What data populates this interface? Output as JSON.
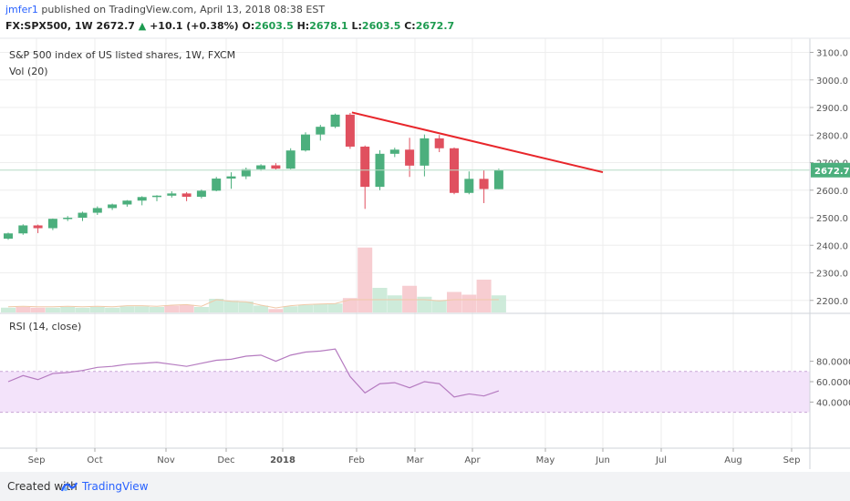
{
  "header": {
    "user": "jmfer1",
    "published": " published on TradingView.com, April 13, 2018 08:38 EST",
    "symbol": "FX:SPX500, 1W",
    "last": "2672.7",
    "change": "+10.1 (+0.38%)",
    "o_label": "O:",
    "o_value": "2603.5",
    "h_label": "H:",
    "h_value": "2678.1",
    "l_label": "L:",
    "l_value": "2603.5",
    "c_label": "C:",
    "c_value": "2672.7"
  },
  "footer": {
    "created_with": "Created with",
    "brand": "TradingView"
  },
  "colors": {
    "up": "#4caf7d",
    "down": "#e0505f",
    "trendline": "#e8262b",
    "rsi_line": "#b57bc0",
    "rsi_band": "#f3e3fa",
    "grid": "#eeeeee",
    "last_price": "#4caf7d"
  },
  "chart_data": {
    "type": "candlestick",
    "title": "S&P 500 index of US listed shares, 1W, FXCM",
    "volume_label": "Vol (20)",
    "price_axis": {
      "ticks": [
        "2200.0",
        "2300.0",
        "2400.0",
        "2500.0",
        "2600.0",
        "2700.0",
        "2800.0",
        "2900.0",
        "3000.0",
        "3100.0"
      ],
      "last_price_label": "2672.7",
      "last_price": 2672.7
    },
    "time_axis": {
      "ticks": [
        "Sep",
        "Oct",
        "Nov",
        "Dec",
        "2018",
        "Feb",
        "Mar",
        "Apr",
        "May",
        "Jun",
        "Jul",
        "Aug",
        "Sep"
      ]
    },
    "candles": [
      {
        "o": 2424,
        "h": 2446,
        "l": 2420,
        "c": 2443
      },
      {
        "o": 2443,
        "h": 2476,
        "l": 2438,
        "c": 2472
      },
      {
        "o": 2472,
        "h": 2475,
        "l": 2444,
        "c": 2462
      },
      {
        "o": 2462,
        "h": 2497,
        "l": 2455,
        "c": 2496
      },
      {
        "o": 2496,
        "h": 2506,
        "l": 2488,
        "c": 2500
      },
      {
        "o": 2500,
        "h": 2522,
        "l": 2488,
        "c": 2518
      },
      {
        "o": 2518,
        "h": 2541,
        "l": 2510,
        "c": 2535
      },
      {
        "o": 2535,
        "h": 2551,
        "l": 2528,
        "c": 2548
      },
      {
        "o": 2548,
        "h": 2564,
        "l": 2540,
        "c": 2562
      },
      {
        "o": 2562,
        "h": 2578,
        "l": 2545,
        "c": 2575
      },
      {
        "o": 2575,
        "h": 2582,
        "l": 2560,
        "c": 2580
      },
      {
        "o": 2580,
        "h": 2596,
        "l": 2573,
        "c": 2588
      },
      {
        "o": 2588,
        "h": 2593,
        "l": 2560,
        "c": 2576
      },
      {
        "o": 2576,
        "h": 2602,
        "l": 2570,
        "c": 2598
      },
      {
        "o": 2598,
        "h": 2648,
        "l": 2596,
        "c": 2642
      },
      {
        "o": 2642,
        "h": 2665,
        "l": 2605,
        "c": 2650
      },
      {
        "o": 2650,
        "h": 2682,
        "l": 2640,
        "c": 2676
      },
      {
        "o": 2676,
        "h": 2694,
        "l": 2670,
        "c": 2690
      },
      {
        "o": 2690,
        "h": 2698,
        "l": 2675,
        "c": 2678
      },
      {
        "o": 2678,
        "h": 2752,
        "l": 2676,
        "c": 2744
      },
      {
        "o": 2744,
        "h": 2810,
        "l": 2740,
        "c": 2802
      },
      {
        "o": 2802,
        "h": 2837,
        "l": 2780,
        "c": 2830
      },
      {
        "o": 2830,
        "h": 2878,
        "l": 2825,
        "c": 2874
      },
      {
        "o": 2874,
        "h": 2880,
        "l": 2750,
        "c": 2758
      },
      {
        "o": 2758,
        "h": 2762,
        "l": 2532,
        "c": 2612
      },
      {
        "o": 2612,
        "h": 2745,
        "l": 2600,
        "c": 2732
      },
      {
        "o": 2732,
        "h": 2754,
        "l": 2720,
        "c": 2747
      },
      {
        "o": 2747,
        "h": 2790,
        "l": 2648,
        "c": 2689
      },
      {
        "o": 2689,
        "h": 2802,
        "l": 2650,
        "c": 2788
      },
      {
        "o": 2788,
        "h": 2800,
        "l": 2738,
        "c": 2752
      },
      {
        "o": 2752,
        "h": 2755,
        "l": 2585,
        "c": 2590
      },
      {
        "o": 2590,
        "h": 2668,
        "l": 2585,
        "c": 2641
      },
      {
        "o": 2641,
        "h": 2672,
        "l": 2553,
        "c": 2604
      },
      {
        "o": 2603.5,
        "h": 2678.1,
        "l": 2603.5,
        "c": 2672.7
      }
    ],
    "volume": [
      {
        "v": 0.07,
        "dir": "up"
      },
      {
        "v": 0.08,
        "dir": "down"
      },
      {
        "v": 0.07,
        "dir": "down"
      },
      {
        "v": 0.07,
        "dir": "up"
      },
      {
        "v": 0.08,
        "dir": "up"
      },
      {
        "v": 0.07,
        "dir": "up"
      },
      {
        "v": 0.08,
        "dir": "up"
      },
      {
        "v": 0.07,
        "dir": "up"
      },
      {
        "v": 0.09,
        "dir": "up"
      },
      {
        "v": 0.09,
        "dir": "up"
      },
      {
        "v": 0.08,
        "dir": "up"
      },
      {
        "v": 0.1,
        "dir": "down"
      },
      {
        "v": 0.11,
        "dir": "down"
      },
      {
        "v": 0.08,
        "dir": "up"
      },
      {
        "v": 0.2,
        "dir": "up"
      },
      {
        "v": 0.17,
        "dir": "up"
      },
      {
        "v": 0.16,
        "dir": "up"
      },
      {
        "v": 0.1,
        "dir": "up"
      },
      {
        "v": 0.05,
        "dir": "down"
      },
      {
        "v": 0.09,
        "dir": "up"
      },
      {
        "v": 0.11,
        "dir": "up"
      },
      {
        "v": 0.12,
        "dir": "up"
      },
      {
        "v": 0.13,
        "dir": "up"
      },
      {
        "v": 0.21,
        "dir": "down"
      },
      {
        "v": 0.95,
        "dir": "down"
      },
      {
        "v": 0.36,
        "dir": "up"
      },
      {
        "v": 0.25,
        "dir": "up"
      },
      {
        "v": 0.39,
        "dir": "down"
      },
      {
        "v": 0.23,
        "dir": "up"
      },
      {
        "v": 0.18,
        "dir": "up"
      },
      {
        "v": 0.3,
        "dir": "down"
      },
      {
        "v": 0.26,
        "dir": "down"
      },
      {
        "v": 0.48,
        "dir": "down"
      },
      {
        "v": 0.25,
        "dir": "up"
      }
    ],
    "rsi": {
      "label": "RSI (14, close)",
      "ticks": [
        "40.0000",
        "60.0000",
        "80.0000"
      ],
      "band": [
        30,
        70
      ],
      "values": [
        60,
        66,
        62,
        68,
        69,
        71,
        74,
        75,
        77,
        78,
        79,
        77,
        75,
        78,
        81,
        82,
        85,
        86,
        80,
        86,
        89,
        90,
        92,
        65,
        49,
        58,
        59,
        54,
        60,
        58,
        45,
        48,
        46,
        51
      ]
    },
    "trendline": {
      "from": {
        "index": 23,
        "price": 2882
      },
      "to": {
        "index": 40,
        "price": 2665
      }
    }
  }
}
